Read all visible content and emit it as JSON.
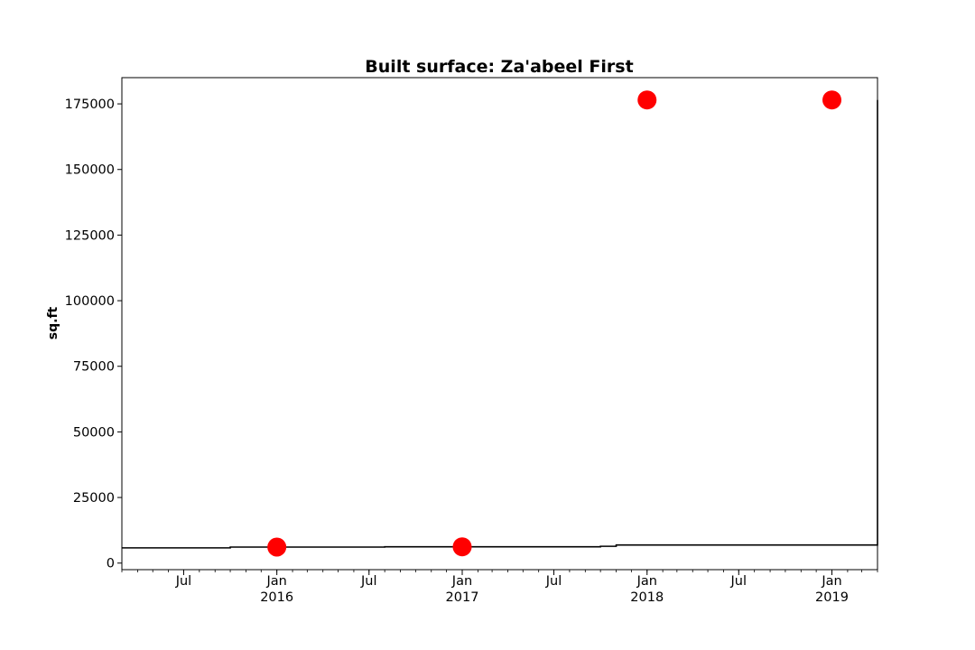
{
  "chart_data": {
    "type": "line",
    "title": "Built surface: Za'abeel First",
    "xlabel": "",
    "ylabel": "sq.ft",
    "xlim": [
      "2015-03-01",
      "2019-04-01"
    ],
    "ylim": [
      -2500,
      185000
    ],
    "grid": false,
    "legend": "none",
    "yticks": [
      0,
      25000,
      50000,
      75000,
      100000,
      125000,
      150000,
      175000
    ],
    "xticks": [
      {
        "date": "2015-07-01",
        "label": "Jul",
        "sub": ""
      },
      {
        "date": "2016-01-01",
        "label": "Jan",
        "sub": "2016"
      },
      {
        "date": "2016-07-01",
        "label": "Jul",
        "sub": ""
      },
      {
        "date": "2017-01-01",
        "label": "Jan",
        "sub": "2017"
      },
      {
        "date": "2017-07-01",
        "label": "Jul",
        "sub": ""
      },
      {
        "date": "2018-01-01",
        "label": "Jan",
        "sub": "2018"
      },
      {
        "date": "2018-07-01",
        "label": "Jul",
        "sub": ""
      },
      {
        "date": "2019-01-01",
        "label": "Jan",
        "sub": "2019"
      }
    ],
    "series": [
      {
        "kind": "step",
        "color": "#000000",
        "x": [
          "2015-03-01",
          "2015-10-01",
          "2016-08-01",
          "2017-10-01",
          "2017-11-01",
          "2019-04-01"
        ],
        "y": [
          5800,
          6100,
          6200,
          6400,
          6900,
          176500
        ]
      },
      {
        "kind": "scatter",
        "color": "#ff0000",
        "x": [
          "2016-01-01",
          "2017-01-01",
          "2018-01-01",
          "2019-01-01"
        ],
        "y": [
          6100,
          6200,
          176500,
          176500
        ]
      }
    ]
  }
}
